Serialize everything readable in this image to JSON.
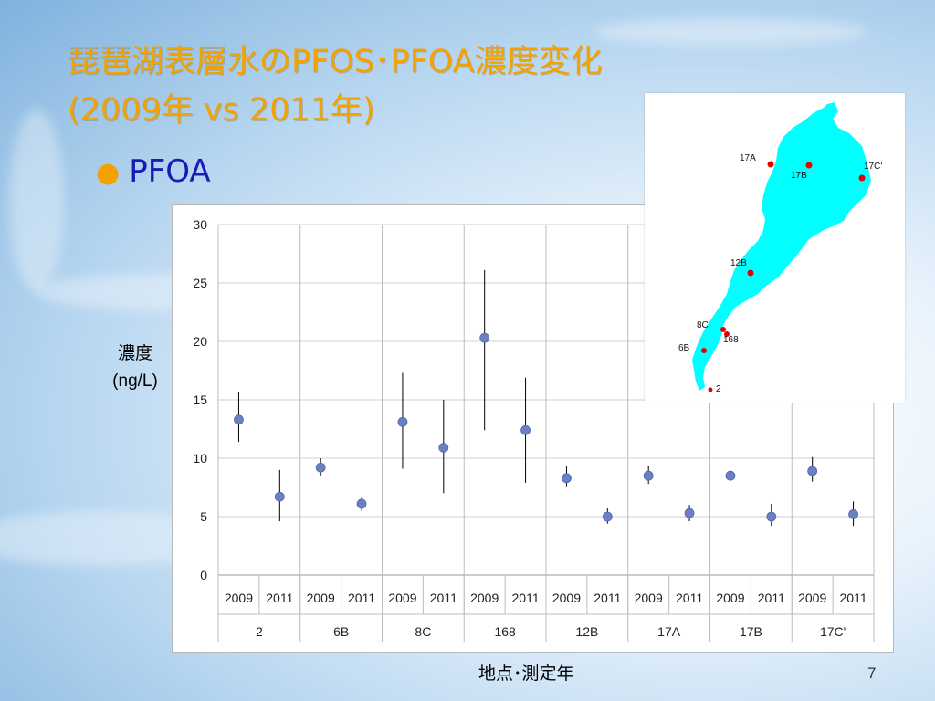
{
  "slide": {
    "title_line1": "琵琶湖表層水のPFOS･PFOA濃度変化",
    "title_line2": "(2009年 vs 2011年)",
    "bullet": "PFOA",
    "page_number": "7",
    "title_color": "#f3a200",
    "bullet_color": "#1b1bb4"
  },
  "chart_data": {
    "type": "scatter",
    "ylabel": "濃度\n(ng/L)",
    "ylabel_lines": [
      "濃度",
      "(ng/L)"
    ],
    "xlabel": "地点･測定年",
    "ylim": [
      0,
      30
    ],
    "yticks": [
      0,
      5,
      10,
      15,
      20,
      25,
      30
    ],
    "grid": true,
    "marker_color": "#6b7fc4",
    "sites": [
      "2",
      "6B",
      "8C",
      "168",
      "12B",
      "17A",
      "17B",
      "17C'"
    ],
    "years": [
      "2009",
      "2011"
    ],
    "points": [
      {
        "site": "2",
        "year": "2009",
        "value": 13.3,
        "err_low": 11.4,
        "err_high": 15.7
      },
      {
        "site": "2",
        "year": "2011",
        "value": 6.7,
        "err_low": 4.6,
        "err_high": 9.0
      },
      {
        "site": "6B",
        "year": "2009",
        "value": 9.2,
        "err_low": 8.5,
        "err_high": 10.0
      },
      {
        "site": "6B",
        "year": "2011",
        "value": 6.1,
        "err_low": 5.5,
        "err_high": 6.7
      },
      {
        "site": "8C",
        "year": "2009",
        "value": 13.1,
        "err_low": 9.1,
        "err_high": 17.3
      },
      {
        "site": "8C",
        "year": "2011",
        "value": 10.9,
        "err_low": 7.0,
        "err_high": 15.0
      },
      {
        "site": "168",
        "year": "2009",
        "value": 20.3,
        "err_low": 12.4,
        "err_high": 26.1
      },
      {
        "site": "168",
        "year": "2011",
        "value": 12.4,
        "err_low": 7.9,
        "err_high": 16.9
      },
      {
        "site": "12B",
        "year": "2009",
        "value": 8.3,
        "err_low": 7.6,
        "err_high": 9.3
      },
      {
        "site": "12B",
        "year": "2011",
        "value": 5.0,
        "err_low": 4.4,
        "err_high": 5.7
      },
      {
        "site": "17A",
        "year": "2009",
        "value": 8.5,
        "err_low": 7.8,
        "err_high": 9.3
      },
      {
        "site": "17A",
        "year": "2011",
        "value": 5.3,
        "err_low": 4.6,
        "err_high": 6.0
      },
      {
        "site": "17B",
        "year": "2009",
        "value": 8.5,
        "err_low": 8.2,
        "err_high": 8.8
      },
      {
        "site": "17B",
        "year": "2011",
        "value": 5.0,
        "err_low": 4.2,
        "err_high": 6.1
      },
      {
        "site": "17C'",
        "year": "2009",
        "value": 8.9,
        "err_low": 8.0,
        "err_high": 10.1
      },
      {
        "site": "17C'",
        "year": "2011",
        "value": 5.2,
        "err_low": 4.2,
        "err_high": 6.3
      }
    ]
  },
  "map": {
    "lake_color": "#00ffff",
    "station_color": "#e60000",
    "stations": [
      "17A",
      "17B",
      "17C'",
      "12B",
      "8C",
      "168",
      "6B",
      "2"
    ]
  }
}
